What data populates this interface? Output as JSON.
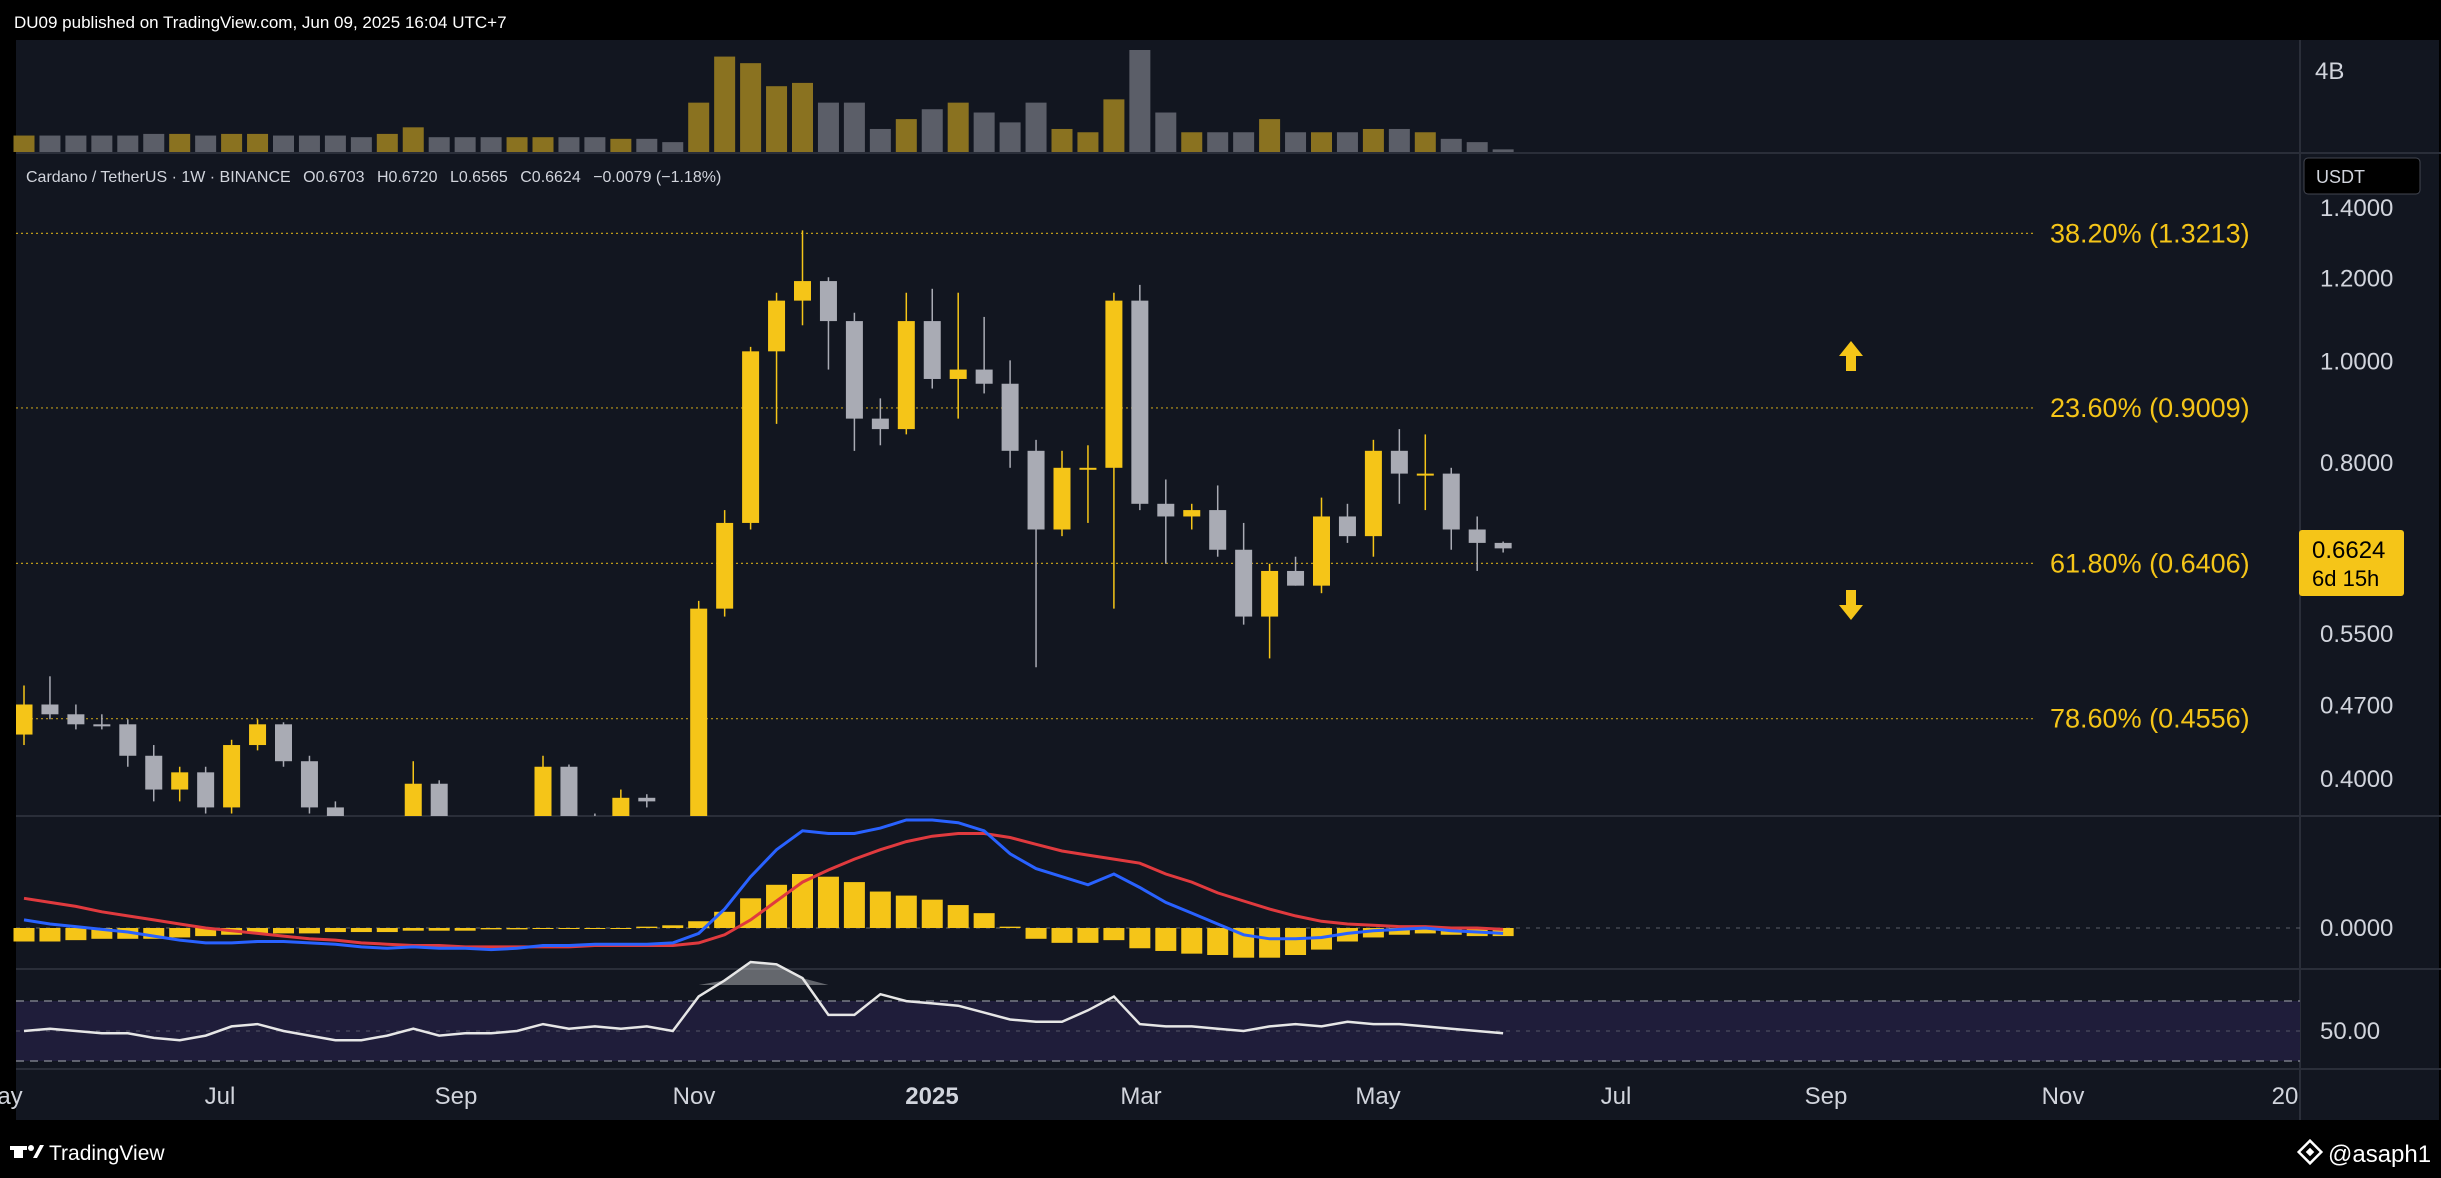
{
  "header": {
    "published": "DU09 published on TradingView.com, Jun 09, 2025 16:04 UTC+7"
  },
  "legend": {
    "symbol": "Cardano / TetherUS · 1W · BINANCE",
    "open": "O0.6703",
    "high": "H0.6720",
    "low": "L0.6565",
    "close": "C0.6624",
    "change": "−0.0079 (−1.18%)"
  },
  "currency_badge": "USDT",
  "price_badge": {
    "price": "0.6624",
    "countdown": "6d 15h"
  },
  "volume_axis_label": "4B",
  "macd_axis_label": "0.0000",
  "rsi_axis_label": "50.00",
  "footer": {
    "brand": "TradingView",
    "author": "@asaph1"
  },
  "colors": {
    "up": "#f5c518",
    "down": "#a9abb4",
    "fib": "#f5c518",
    "background": "#121620",
    "macd_line": "#2962ff",
    "signal_line": "#e03a3e",
    "rsi_line": "#e6e6e6"
  },
  "chart_data": {
    "type": "candlestick",
    "interval": "1W",
    "price_axis": {
      "scale": "log",
      "ticks": [
        "1.4000",
        "1.2000",
        "1.0000",
        "0.8000",
        "0.5500",
        "0.4700",
        "0.4000"
      ]
    },
    "time_axis": {
      "ticks": [
        "ay",
        "Jul",
        "Sep",
        "Nov",
        "2025",
        "Mar",
        "May",
        "Jul",
        "Sep",
        "Nov",
        "20"
      ]
    },
    "fib_levels": [
      {
        "label": "38.20% (1.3213)",
        "price": 1.3213
      },
      {
        "label": "23.60% (0.9009)",
        "price": 0.9009
      },
      {
        "label": "61.80% (0.6406)",
        "price": 0.6406
      },
      {
        "label": "78.60% (0.4556)",
        "price": 0.4556
      }
    ],
    "annotations": [
      {
        "type": "arrow-up"
      },
      {
        "type": "arrow-down"
      }
    ],
    "candles": [
      {
        "t": 0,
        "o": 0.44,
        "h": 0.49,
        "l": 0.43,
        "c": 0.47
      },
      {
        "t": 1,
        "o": 0.47,
        "h": 0.5,
        "l": 0.455,
        "c": 0.46
      },
      {
        "t": 2,
        "o": 0.46,
        "h": 0.47,
        "l": 0.445,
        "c": 0.45
      },
      {
        "t": 3,
        "o": 0.45,
        "h": 0.46,
        "l": 0.445,
        "c": 0.448
      },
      {
        "t": 4,
        "o": 0.45,
        "h": 0.455,
        "l": 0.41,
        "c": 0.42
      },
      {
        "t": 5,
        "o": 0.42,
        "h": 0.43,
        "l": 0.38,
        "c": 0.39
      },
      {
        "t": 6,
        "o": 0.39,
        "h": 0.41,
        "l": 0.38,
        "c": 0.405
      },
      {
        "t": 7,
        "o": 0.405,
        "h": 0.41,
        "l": 0.37,
        "c": 0.375
      },
      {
        "t": 8,
        "o": 0.375,
        "h": 0.435,
        "l": 0.37,
        "c": 0.43
      },
      {
        "t": 9,
        "o": 0.43,
        "h": 0.455,
        "l": 0.425,
        "c": 0.45
      },
      {
        "t": 10,
        "o": 0.45,
        "h": 0.452,
        "l": 0.41,
        "c": 0.415
      },
      {
        "t": 11,
        "o": 0.415,
        "h": 0.42,
        "l": 0.37,
        "c": 0.375
      },
      {
        "t": 12,
        "o": 0.375,
        "h": 0.38,
        "l": 0.35,
        "c": 0.355
      },
      {
        "t": 13,
        "o": 0.355,
        "h": 0.36,
        "l": 0.335,
        "c": 0.34
      },
      {
        "t": 14,
        "o": 0.34,
        "h": 0.36,
        "l": 0.33,
        "c": 0.35
      },
      {
        "t": 15,
        "o": 0.35,
        "h": 0.415,
        "l": 0.345,
        "c": 0.395
      },
      {
        "t": 16,
        "o": 0.395,
        "h": 0.398,
        "l": 0.34,
        "c": 0.345
      },
      {
        "t": 17,
        "o": 0.345,
        "h": 0.35,
        "l": 0.33,
        "c": 0.335
      },
      {
        "t": 18,
        "o": 0.335,
        "h": 0.345,
        "l": 0.325,
        "c": 0.33
      },
      {
        "t": 19,
        "o": 0.33,
        "h": 0.35,
        "l": 0.32,
        "c": 0.345
      },
      {
        "t": 20,
        "o": 0.345,
        "h": 0.42,
        "l": 0.34,
        "c": 0.41
      },
      {
        "t": 21,
        "o": 0.41,
        "h": 0.412,
        "l": 0.36,
        "c": 0.365
      },
      {
        "t": 22,
        "o": 0.365,
        "h": 0.37,
        "l": 0.34,
        "c": 0.345
      },
      {
        "t": 23,
        "o": 0.345,
        "h": 0.39,
        "l": 0.34,
        "c": 0.383
      },
      {
        "t": 24,
        "o": 0.383,
        "h": 0.386,
        "l": 0.375,
        "c": 0.38
      },
      {
        "t": 25,
        "o": 0.34,
        "h": 0.35,
        "l": 0.32,
        "c": 0.33
      },
      {
        "t": 26,
        "o": 0.33,
        "h": 0.59,
        "l": 0.32,
        "c": 0.58
      },
      {
        "t": 27,
        "o": 0.58,
        "h": 0.72,
        "l": 0.57,
        "c": 0.7
      },
      {
        "t": 28,
        "o": 0.7,
        "h": 1.03,
        "l": 0.69,
        "c": 1.02
      },
      {
        "t": 29,
        "o": 1.02,
        "h": 1.16,
        "l": 0.87,
        "c": 1.14
      },
      {
        "t": 30,
        "o": 1.14,
        "h": 1.33,
        "l": 1.08,
        "c": 1.19
      },
      {
        "t": 31,
        "o": 1.19,
        "h": 1.2,
        "l": 0.98,
        "c": 1.09
      },
      {
        "t": 32,
        "o": 1.09,
        "h": 1.11,
        "l": 0.82,
        "c": 0.88
      },
      {
        "t": 33,
        "o": 0.88,
        "h": 0.92,
        "l": 0.83,
        "c": 0.86
      },
      {
        "t": 34,
        "o": 0.86,
        "h": 1.16,
        "l": 0.85,
        "c": 1.09
      },
      {
        "t": 35,
        "o": 1.09,
        "h": 1.17,
        "l": 0.94,
        "c": 0.96
      },
      {
        "t": 36,
        "o": 0.96,
        "h": 1.16,
        "l": 0.88,
        "c": 0.98
      },
      {
        "t": 37,
        "o": 0.98,
        "h": 1.1,
        "l": 0.93,
        "c": 0.95
      },
      {
        "t": 38,
        "o": 0.95,
        "h": 1.0,
        "l": 0.79,
        "c": 0.82
      },
      {
        "t": 39,
        "o": 0.82,
        "h": 0.84,
        "l": 0.51,
        "c": 0.69
      },
      {
        "t": 40,
        "o": 0.69,
        "h": 0.82,
        "l": 0.68,
        "c": 0.79
      },
      {
        "t": 41,
        "o": 0.79,
        "h": 0.83,
        "l": 0.7,
        "c": 0.79
      },
      {
        "t": 42,
        "o": 0.79,
        "h": 1.16,
        "l": 0.58,
        "c": 1.14
      },
      {
        "t": 43,
        "o": 1.14,
        "h": 1.18,
        "l": 0.72,
        "c": 0.73
      },
      {
        "t": 44,
        "o": 0.73,
        "h": 0.77,
        "l": 0.64,
        "c": 0.71
      },
      {
        "t": 45,
        "o": 0.71,
        "h": 0.73,
        "l": 0.69,
        "c": 0.72
      },
      {
        "t": 46,
        "o": 0.72,
        "h": 0.76,
        "l": 0.65,
        "c": 0.66
      },
      {
        "t": 47,
        "o": 0.66,
        "h": 0.7,
        "l": 0.56,
        "c": 0.57
      },
      {
        "t": 48,
        "o": 0.57,
        "h": 0.64,
        "l": 0.52,
        "c": 0.63
      },
      {
        "t": 49,
        "o": 0.63,
        "h": 0.65,
        "l": 0.61,
        "c": 0.61
      },
      {
        "t": 50,
        "o": 0.61,
        "h": 0.74,
        "l": 0.6,
        "c": 0.71
      },
      {
        "t": 51,
        "o": 0.71,
        "h": 0.73,
        "l": 0.67,
        "c": 0.68
      },
      {
        "t": 52,
        "o": 0.68,
        "h": 0.84,
        "l": 0.65,
        "c": 0.82
      },
      {
        "t": 53,
        "o": 0.82,
        "h": 0.86,
        "l": 0.73,
        "c": 0.78
      },
      {
        "t": 54,
        "o": 0.78,
        "h": 0.85,
        "l": 0.72,
        "c": 0.78
      },
      {
        "t": 55,
        "o": 0.78,
        "h": 0.79,
        "l": 0.66,
        "c": 0.69
      },
      {
        "t": 56,
        "o": 0.69,
        "h": 0.71,
        "l": 0.63,
        "c": 0.67
      },
      {
        "t": 57,
        "o": 0.67,
        "h": 0.672,
        "l": 0.656,
        "c": 0.662
      }
    ],
    "volume": [
      0.5,
      0.5,
      0.5,
      0.5,
      0.5,
      0.55,
      0.55,
      0.5,
      0.55,
      0.55,
      0.5,
      0.5,
      0.5,
      0.45,
      0.55,
      0.75,
      0.45,
      0.45,
      0.45,
      0.45,
      0.45,
      0.45,
      0.45,
      0.4,
      0.4,
      0.3,
      1.5,
      2.9,
      2.7,
      2.0,
      2.1,
      1.5,
      1.5,
      0.7,
      1.0,
      1.3,
      1.5,
      1.2,
      0.9,
      1.5,
      0.7,
      0.6,
      1.6,
      3.1,
      1.2,
      0.6,
      0.6,
      0.6,
      1.0,
      0.6,
      0.6,
      0.6,
      0.7,
      0.7,
      0.6,
      0.4,
      0.3,
      0.08
    ],
    "macd_histogram": [
      -0.01,
      -0.01,
      -0.009,
      -0.008,
      -0.008,
      -0.008,
      -0.007,
      -0.006,
      -0.005,
      -0.004,
      -0.004,
      -0.004,
      -0.003,
      -0.003,
      -0.003,
      -0.002,
      -0.002,
      -0.002,
      -0.001,
      -0.001,
      0.0,
      0.0,
      0.0,
      0.0,
      0.001,
      0.002,
      0.005,
      0.012,
      0.022,
      0.032,
      0.04,
      0.038,
      0.034,
      0.027,
      0.024,
      0.021,
      0.017,
      0.011,
      0.001,
      -0.008,
      -0.011,
      -0.011,
      -0.009,
      -0.015,
      -0.017,
      -0.019,
      -0.02,
      -0.022,
      -0.022,
      -0.02,
      -0.016,
      -0.01,
      -0.007,
      -0.005,
      -0.004,
      -0.005,
      -0.006,
      -0.006
    ],
    "macd_line": [
      0.006,
      0.003,
      0.001,
      -0.001,
      -0.003,
      -0.006,
      -0.009,
      -0.011,
      -0.011,
      -0.01,
      -0.01,
      -0.011,
      -0.012,
      -0.014,
      -0.015,
      -0.014,
      -0.015,
      -0.015,
      -0.016,
      -0.015,
      -0.013,
      -0.013,
      -0.012,
      -0.012,
      -0.012,
      -0.011,
      -0.004,
      0.014,
      0.038,
      0.058,
      0.072,
      0.07,
      0.07,
      0.074,
      0.08,
      0.08,
      0.078,
      0.072,
      0.055,
      0.044,
      0.038,
      0.032,
      0.04,
      0.03,
      0.019,
      0.011,
      0.003,
      -0.005,
      -0.008,
      -0.008,
      -0.007,
      -0.004,
      -0.002,
      -0.001,
      0.0,
      -0.002,
      -0.003,
      -0.004
    ],
    "signal_line": [
      0.022,
      0.019,
      0.016,
      0.012,
      0.009,
      0.006,
      0.003,
      0.0,
      -0.002,
      -0.004,
      -0.006,
      -0.008,
      -0.009,
      -0.011,
      -0.012,
      -0.013,
      -0.013,
      -0.014,
      -0.014,
      -0.014,
      -0.014,
      -0.014,
      -0.013,
      -0.013,
      -0.013,
      -0.013,
      -0.011,
      -0.005,
      0.006,
      0.02,
      0.034,
      0.043,
      0.051,
      0.058,
      0.064,
      0.068,
      0.07,
      0.07,
      0.067,
      0.062,
      0.057,
      0.054,
      0.051,
      0.048,
      0.04,
      0.034,
      0.026,
      0.02,
      0.014,
      0.009,
      0.005,
      0.003,
      0.002,
      0.001,
      0.001,
      0.0,
      0.0,
      -0.001
    ],
    "rsi": [
      50,
      51,
      50,
      49,
      49,
      47,
      46,
      48,
      52,
      53,
      50,
      48,
      46,
      46,
      48,
      51,
      48,
      49,
      49,
      50,
      53,
      51,
      52,
      51,
      52,
      50,
      65,
      72,
      80,
      79,
      73,
      57,
      57,
      66,
      63,
      62,
      61,
      58,
      55,
      54,
      54,
      59,
      65,
      53,
      52,
      52,
      51,
      50,
      52,
      53,
      52,
      54,
      53,
      53,
      52,
      51,
      50,
      49
    ]
  }
}
